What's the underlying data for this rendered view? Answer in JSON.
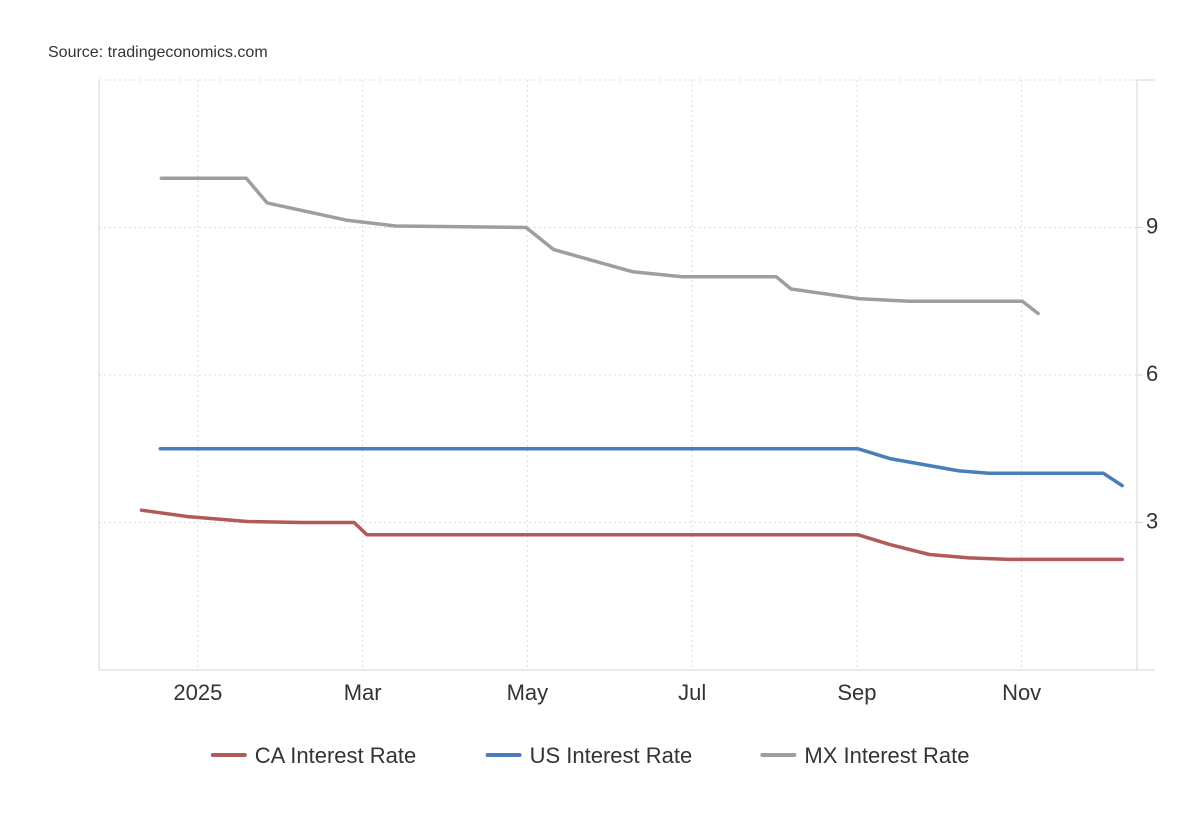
{
  "source": "Source: tradingeconomics.com",
  "chart_data": {
    "type": "line",
    "title": "",
    "xlabel": "",
    "ylabel": "",
    "ylim": [
      0,
      12
    ],
    "y_axis_side": "right",
    "grid": true,
    "legend_position": "bottom-center",
    "x_domain": [
      2024.9,
      2025.95
    ],
    "x_ticks": [
      {
        "label": "2025",
        "x": 2025.0
      },
      {
        "label": "Mar",
        "x": 2025.1667
      },
      {
        "label": "May",
        "x": 2025.3333
      },
      {
        "label": "Jul",
        "x": 2025.5
      },
      {
        "label": "Sep",
        "x": 2025.6667
      },
      {
        "label": "Nov",
        "x": 2025.8333
      }
    ],
    "y_ticks": [
      3,
      6,
      9
    ],
    "series": [
      {
        "name": "CA Interest Rate",
        "color": "#b05a5a",
        "points": [
          [
            2024.943,
            3.25
          ],
          [
            2024.99,
            3.12
          ],
          [
            2025.05,
            3.02
          ],
          [
            2025.106,
            3.0
          ],
          [
            2025.158,
            3.0
          ],
          [
            2025.171,
            2.75
          ],
          [
            2025.3,
            2.75
          ],
          [
            2025.5,
            2.75
          ],
          [
            2025.668,
            2.75
          ],
          [
            2025.7,
            2.55
          ],
          [
            2025.74,
            2.35
          ],
          [
            2025.78,
            2.28
          ],
          [
            2025.82,
            2.25
          ],
          [
            2025.935,
            2.25
          ]
        ]
      },
      {
        "name": "US Interest Rate",
        "color": "#4a7ebb",
        "points": [
          [
            2024.962,
            4.5
          ],
          [
            2025.2,
            4.5
          ],
          [
            2025.5,
            4.5
          ],
          [
            2025.668,
            4.5
          ],
          [
            2025.7,
            4.3
          ],
          [
            2025.77,
            4.05
          ],
          [
            2025.8,
            4.0
          ],
          [
            2025.916,
            4.0
          ],
          [
            2025.935,
            3.75
          ]
        ]
      },
      {
        "name": "MX Interest Rate",
        "color": "#9e9e9e",
        "points": [
          [
            2024.963,
            10.0
          ],
          [
            2025.049,
            10.0
          ],
          [
            2025.07,
            9.5
          ],
          [
            2025.15,
            9.15
          ],
          [
            2025.2,
            9.03
          ],
          [
            2025.332,
            9.0
          ],
          [
            2025.36,
            8.55
          ],
          [
            2025.44,
            8.1
          ],
          [
            2025.49,
            8.0
          ],
          [
            2025.585,
            8.0
          ],
          [
            2025.6,
            7.75
          ],
          [
            2025.67,
            7.55
          ],
          [
            2025.72,
            7.5
          ],
          [
            2025.834,
            7.5
          ],
          [
            2025.85,
            7.25
          ]
        ]
      }
    ]
  }
}
